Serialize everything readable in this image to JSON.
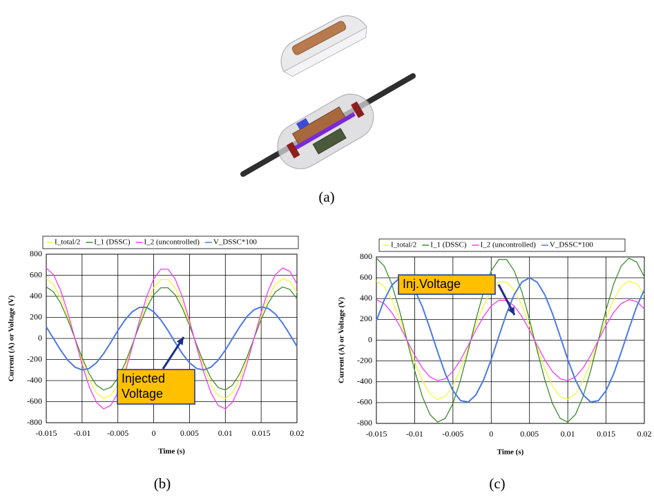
{
  "figure": {
    "panel_labels": [
      "(a)",
      "(b)",
      "(c)"
    ]
  },
  "chart_data": [
    {
      "type": "line",
      "xlabel": "Time (s)",
      "ylabel": "Current (A) or Voltage (V)",
      "legend": "top",
      "grid": true,
      "x": [
        -0.015,
        -0.014,
        -0.013,
        -0.012,
        -0.011,
        -0.01,
        -0.009,
        -0.008,
        -0.007,
        -0.006,
        -0.005,
        -0.004,
        -0.003,
        -0.002,
        -0.001,
        0,
        0.001,
        0.002,
        0.003,
        0.004,
        0.005,
        0.006,
        0.007,
        0.008,
        0.009,
        0.01,
        0.011,
        0.012,
        0.013,
        0.014,
        0.015,
        0.016,
        0.017,
        0.018,
        0.019,
        0.02
      ],
      "xlim": [
        -0.015,
        0.02
      ],
      "xticks": [
        -0.015,
        -0.01,
        -0.005,
        0,
        0.005,
        0.01,
        0.015,
        0.02
      ],
      "ylim": [
        -800,
        800
      ],
      "yticks": [
        -800,
        -600,
        -400,
        -200,
        0,
        200,
        400,
        600,
        800
      ],
      "series": [
        {
          "name": "I_total/2",
          "color": "#f4f43c",
          "values": [
            569,
            516,
            390,
            210,
            0,
            -210,
            -390,
            -516,
            -569,
            -542,
            -439,
            -275,
            -71,
            142,
            335,
            481,
            560,
            560,
            481,
            335,
            142,
            -71,
            -275,
            -439,
            -542,
            -569,
            -516,
            -390,
            -210,
            0,
            210,
            390,
            516,
            569,
            542,
            439
          ]
        },
        {
          "name": "I_1 (DSSC)",
          "color": "#3c8c2c",
          "values": [
            489,
            443,
            336,
            180,
            0,
            -180,
            -336,
            -443,
            -489,
            -466,
            -378,
            -236,
            -61,
            122,
            288,
            414,
            481,
            481,
            414,
            288,
            122,
            -61,
            -236,
            -378,
            -466,
            -489,
            -443,
            -336,
            -180,
            0,
            180,
            336,
            443,
            489,
            466,
            378
          ]
        },
        {
          "name": "I_2 (uncontrolled)",
          "color": "#f23cf2",
          "values": [
            669,
            606,
            459,
            247,
            0,
            -247,
            -459,
            -606,
            -669,
            -637,
            -517,
            -323,
            -84,
            167,
            394,
            565,
            658,
            658,
            565,
            394,
            167,
            -84,
            -323,
            -517,
            -637,
            -669,
            -606,
            -459,
            -247,
            0,
            247,
            459,
            606,
            669,
            637,
            517
          ]
        },
        {
          "name": "V_DSSC*100",
          "color": "#4a78e8",
          "values": [
            110,
            0,
            -110,
            -206,
            -272,
            -299,
            -285,
            -231,
            -145,
            -38,
            75,
            176,
            253,
            295,
            295,
            253,
            176,
            75,
            -38,
            -145,
            -231,
            -285,
            -299,
            -272,
            -206,
            -110,
            0,
            110,
            206,
            272,
            299,
            285,
            231,
            145,
            38,
            -75
          ]
        }
      ],
      "annotation": {
        "lines": [
          "Injected",
          "Voltage"
        ]
      }
    },
    {
      "type": "line",
      "xlabel": "Time (s)",
      "ylabel": "Current (A) or Voltage (V)",
      "legend": "top",
      "grid": true,
      "x": [
        -0.015,
        -0.014,
        -0.013,
        -0.012,
        -0.011,
        -0.01,
        -0.009,
        -0.008,
        -0.007,
        -0.006,
        -0.005,
        -0.004,
        -0.003,
        -0.002,
        -0.001,
        0,
        0.001,
        0.002,
        0.003,
        0.004,
        0.005,
        0.006,
        0.007,
        0.008,
        0.009,
        0.01,
        0.011,
        0.012,
        0.013,
        0.014,
        0.015,
        0.016,
        0.017,
        0.018,
        0.019,
        0.02
      ],
      "xlim": [
        -0.015,
        0.02
      ],
      "xticks": [
        -0.015,
        -0.01,
        -0.005,
        0,
        0.005,
        0.01,
        0.015,
        0.02
      ],
      "ylim": [
        -800,
        800
      ],
      "yticks": [
        -800,
        -600,
        -400,
        -200,
        0,
        200,
        400,
        600,
        800
      ],
      "series": [
        {
          "name": "I_total/2",
          "color": "#f4f43c",
          "values": [
            569,
            516,
            390,
            210,
            0,
            -210,
            -390,
            -516,
            -569,
            -542,
            -439,
            -275,
            -71,
            142,
            335,
            481,
            560,
            560,
            481,
            335,
            142,
            -71,
            -275,
            -439,
            -542,
            -569,
            -516,
            -390,
            -210,
            0,
            210,
            390,
            516,
            569,
            542,
            439
          ]
        },
        {
          "name": "I_1 (DSSC)",
          "color": "#3c8c2c",
          "values": [
            788,
            715,
            541,
            291,
            0,
            -291,
            -541,
            -715,
            -788,
            -751,
            -609,
            -381,
            -99,
            197,
            465,
            667,
            776,
            776,
            667,
            465,
            197,
            -99,
            -381,
            -609,
            -751,
            -788,
            -715,
            -541,
            -291,
            0,
            291,
            541,
            715,
            788,
            751,
            609
          ]
        },
        {
          "name": "I_2 (uncontrolled)",
          "color": "#f23cf2",
          "values": [
            389,
            353,
            267,
            144,
            0,
            -144,
            -267,
            -353,
            -389,
            -371,
            -301,
            -188,
            -49,
            97,
            229,
            329,
            383,
            383,
            329,
            229,
            97,
            -49,
            -188,
            -301,
            -371,
            -389,
            -353,
            -267,
            -144,
            0,
            144,
            267,
            353,
            389,
            371,
            301
          ]
        },
        {
          "name": "V_DSSC*100",
          "color": "#4a78e8",
          "values": [
            185,
            382,
            526,
            595,
            581,
            485,
            322,
            112,
            -112,
            -322,
            -485,
            -581,
            -595,
            -526,
            -382,
            -185,
            38,
            256,
            437,
            558,
            600,
            558,
            437,
            256,
            38,
            -185,
            -382,
            -526,
            -595,
            -581,
            -485,
            -322,
            -112,
            112,
            322,
            485
          ]
        }
      ],
      "annotation": {
        "lines": [
          "Inj.Voltage"
        ]
      }
    }
  ]
}
